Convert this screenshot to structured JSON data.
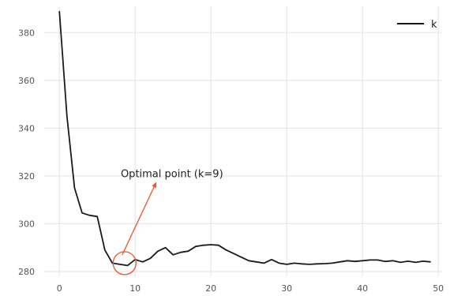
{
  "chart_data": {
    "type": "line",
    "xlim": [
      -2,
      50.5
    ],
    "ylim": [
      278,
      391
    ],
    "xticks": [
      0,
      10,
      20,
      30,
      40,
      50
    ],
    "yticks": [
      280,
      300,
      320,
      340,
      360,
      380
    ],
    "grid": true,
    "legend_position": "top-right",
    "series": [
      {
        "name": "k",
        "color": "#1a1a1a",
        "x": [
          0,
          1,
          2,
          3,
          4,
          5,
          6,
          7,
          8,
          9,
          10,
          11,
          12,
          13,
          14,
          15,
          16,
          17,
          18,
          19,
          20,
          21,
          22,
          23,
          24,
          25,
          26,
          27,
          28,
          29,
          30,
          31,
          32,
          33,
          34,
          35,
          36,
          37,
          38,
          39,
          40,
          41,
          42,
          43,
          44,
          45,
          46,
          47,
          48,
          49
        ],
        "y": [
          389,
          345,
          315,
          304.5,
          303.5,
          303,
          289,
          283.5,
          283,
          282.5,
          285,
          284,
          285.5,
          288.5,
          290,
          287,
          288,
          288.5,
          290.5,
          291,
          291.2,
          291,
          289,
          287.5,
          286,
          284.5,
          284,
          283.5,
          285,
          283.5,
          283,
          283.5,
          283.2,
          283,
          283.2,
          283.3,
          283.5,
          284,
          284.5,
          284.2,
          284.5,
          284.8,
          284.8,
          284.2,
          284.5,
          283.8,
          284.3,
          283.8,
          284.3,
          284
        ]
      }
    ],
    "annotation": {
      "text": "Optimal point (k=9)",
      "point": [
        8.6,
        283.5
      ],
      "text_position": [
        8.1,
        319.5
      ],
      "arrow_head": [
        12.8,
        317.5
      ],
      "arrow_tail": [
        8.3,
        287
      ],
      "color": "#ff4d2a"
    }
  }
}
